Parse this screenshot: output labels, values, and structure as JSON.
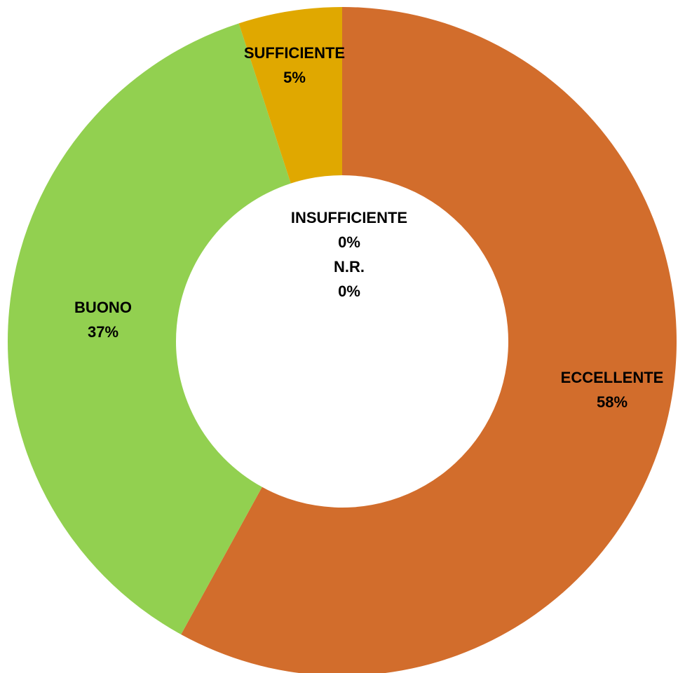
{
  "chart_data": {
    "type": "donut",
    "categories": [
      "ECCELLENTE",
      "BUONO",
      "SUFFICIENTE",
      "INSUFFICIENTE",
      "N.R."
    ],
    "values": [
      58,
      37,
      5,
      0,
      0
    ],
    "value_labels": [
      "58%",
      "37%",
      "5%",
      "0%",
      "0%"
    ],
    "colors": [
      "#d26d2c",
      "#92d050",
      "#e0a800",
      "#4472c4",
      "#a5a5a5"
    ]
  }
}
